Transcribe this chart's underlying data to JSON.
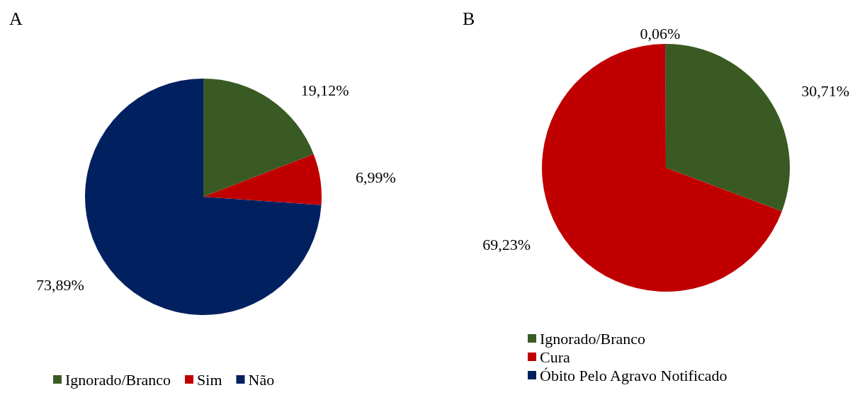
{
  "chart_data": [
    {
      "type": "pie",
      "title": "A",
      "categories": [
        "Ignorado/Branco",
        "Sim",
        "Não"
      ],
      "values": [
        19.12,
        6.99,
        73.89
      ],
      "colors": [
        "#3a5a23",
        "#c00000",
        "#002060"
      ],
      "value_labels": [
        "19,12%",
        "6,99%",
        "73,89%"
      ],
      "legend": "bottom"
    },
    {
      "type": "pie",
      "title": "B",
      "categories": [
        "Ignorado/Branco",
        "Cura",
        "Óbito Pelo Agravo Notificado"
      ],
      "values": [
        30.71,
        69.23,
        0.06
      ],
      "colors": [
        "#3a5a23",
        "#c00000",
        "#002060"
      ],
      "value_labels": [
        "30,71%",
        "69,23%",
        "0,06%"
      ],
      "legend": "bottom left"
    }
  ]
}
